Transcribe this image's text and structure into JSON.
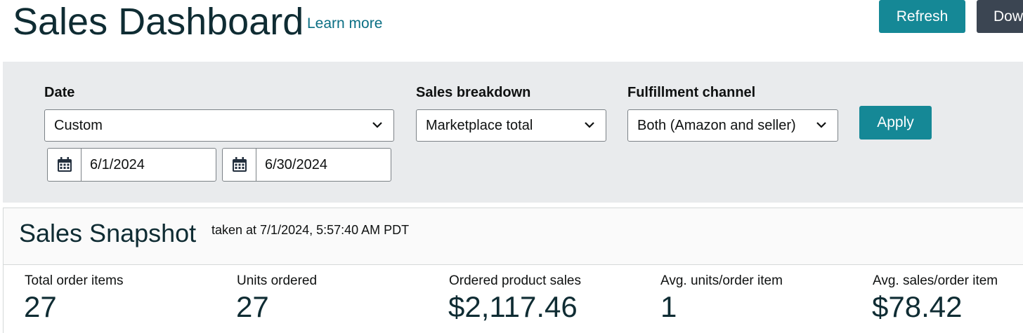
{
  "header": {
    "title": "Sales Dashboard",
    "learn_more": "Learn more",
    "refresh_label": "Refresh",
    "download_label": "Dow"
  },
  "filters": {
    "date": {
      "label": "Date",
      "value": "Custom"
    },
    "start_date": "6/1/2024",
    "end_date": "6/30/2024",
    "sales_breakdown": {
      "label": "Sales breakdown",
      "value": "Marketplace total"
    },
    "fulfillment": {
      "label": "Fulfillment channel",
      "value": "Both (Amazon and seller)"
    },
    "apply_label": "Apply"
  },
  "snapshot": {
    "title": "Sales Snapshot",
    "taken_at": "taken at 7/1/2024, 5:57:40 AM PDT",
    "metrics": [
      {
        "label": "Total order items",
        "value": "27"
      },
      {
        "label": "Units ordered",
        "value": "27"
      },
      {
        "label": "Ordered product sales",
        "value": "$2,117.46"
      },
      {
        "label": "Avg. units/order item",
        "value": "1"
      },
      {
        "label": "Avg. sales/order item",
        "value": "$78.42"
      }
    ]
  },
  "colors": {
    "accent": "#158896",
    "dark_button": "#3b4552",
    "link": "#0b6f84",
    "filter_bg": "#e9ebed"
  },
  "icons": {
    "calendar": "calendar-icon",
    "chevron": "chevron-down-icon"
  }
}
